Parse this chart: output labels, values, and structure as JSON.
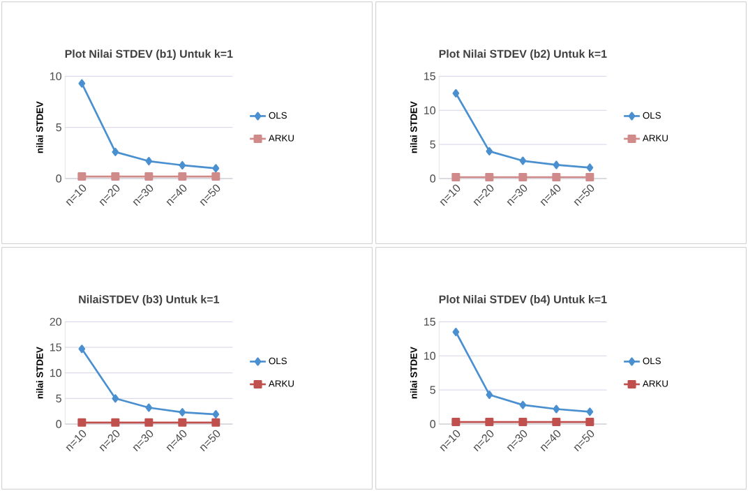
{
  "chart_data": [
    {
      "type": "line",
      "title": "Plot Nilai STDEV (b1) Untuk k=1",
      "ylabel": "nilai STDEV",
      "categories": [
        "n=10",
        "n=20",
        "n=30",
        "n=40",
        "n=50"
      ],
      "series": [
        {
          "name": "OLS",
          "color": "#4a90d0",
          "marker": "diamond",
          "values": [
            9.3,
            2.6,
            1.7,
            1.3,
            1.0
          ]
        },
        {
          "name": "ARKU",
          "color": "#d08a8a",
          "marker": "square",
          "values": [
            0.2,
            0.2,
            0.2,
            0.2,
            0.2
          ]
        }
      ],
      "ylim": [
        0,
        10
      ],
      "yticks": [
        0,
        5,
        10
      ],
      "grid": "y",
      "legend": "right"
    },
    {
      "type": "line",
      "title": "Plot Nilai STDEV (b2) Untuk k=1",
      "ylabel": "nilai STDEV",
      "categories": [
        "n=10",
        "n=20",
        "n=30",
        "n=40",
        "n=50"
      ],
      "series": [
        {
          "name": "OLS",
          "color": "#4a90d0",
          "marker": "diamond",
          "values": [
            12.5,
            4.0,
            2.6,
            2.0,
            1.6
          ]
        },
        {
          "name": "ARKU",
          "color": "#d08a8a",
          "marker": "square",
          "values": [
            0.2,
            0.2,
            0.2,
            0.2,
            0.2
          ]
        }
      ],
      "ylim": [
        0,
        15
      ],
      "yticks": [
        0,
        5,
        10,
        15
      ],
      "grid": "y",
      "legend": "right"
    },
    {
      "type": "line",
      "title": "NilaiSTDEV (b3) Untuk k=1",
      "ylabel": "nilai STDEV",
      "categories": [
        "n=10",
        "n=20",
        "n=30",
        "n=40",
        "n=50"
      ],
      "series": [
        {
          "name": "OLS",
          "color": "#4a90d0",
          "marker": "diamond",
          "values": [
            14.7,
            5.0,
            3.2,
            2.3,
            1.9
          ]
        },
        {
          "name": "ARKU",
          "color": "#c0504d",
          "marker": "square",
          "values": [
            0.3,
            0.3,
            0.3,
            0.3,
            0.3
          ]
        }
      ],
      "ylim": [
        0,
        20
      ],
      "yticks": [
        0,
        5,
        10,
        15,
        20
      ],
      "grid": "y",
      "legend": "right"
    },
    {
      "type": "line",
      "title": "Plot Nilai STDEV (b4) Untuk k=1",
      "ylabel": "nilai STDEV",
      "categories": [
        "n=10",
        "n=20",
        "n=30",
        "n=40",
        "n=50"
      ],
      "series": [
        {
          "name": "OLS",
          "color": "#4a90d0",
          "marker": "diamond",
          "values": [
            13.5,
            4.3,
            2.8,
            2.2,
            1.8
          ]
        },
        {
          "name": "ARKU",
          "color": "#c0504d",
          "marker": "square",
          "values": [
            0.3,
            0.3,
            0.3,
            0.3,
            0.3
          ]
        }
      ],
      "ylim": [
        0,
        15
      ],
      "yticks": [
        0,
        5,
        10,
        15
      ],
      "grid": "y",
      "legend": "right"
    }
  ]
}
